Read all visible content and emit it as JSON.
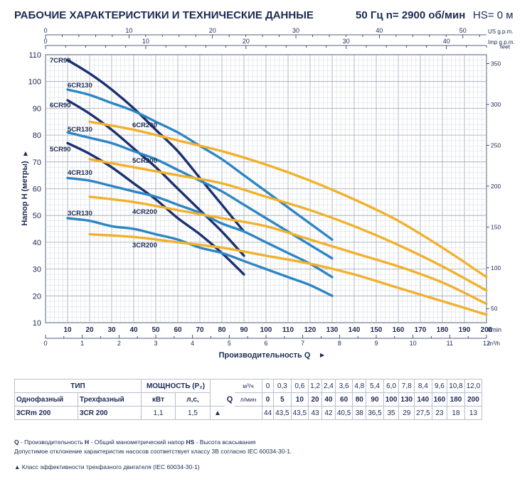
{
  "header": {
    "title": "РАБОЧИЕ ХАРАКТЕРИСТИКИ И ТЕХНИЧЕСКИЕ ДАННЫЕ",
    "frequency": "50 Гц   n= 2900 об/мин",
    "hs": "HS= 0 м"
  },
  "chart_data": {
    "type": "line",
    "ylabel": "Напор H (метры)",
    "xlabel": "Производительность Q",
    "y_ticks": [
      "10",
      "20",
      "30",
      "40",
      "50",
      "60",
      "70",
      "80",
      "90",
      "100",
      "110"
    ],
    "ylim": [
      10,
      110
    ],
    "x_lpm_ticks": [
      "10",
      "20",
      "30",
      "40",
      "50",
      "60",
      "70",
      "80",
      "90",
      "100",
      "110",
      "120",
      "130",
      "140",
      "150",
      "160",
      "170",
      "180",
      "190",
      "200"
    ],
    "x_lpm_unit": "l/min",
    "x_m3h_ticks": [
      "0",
      "1",
      "2",
      "3",
      "4",
      "5",
      "6",
      "7",
      "8",
      "9",
      "10",
      "11",
      "12"
    ],
    "x_m3h_unit": "m³/h",
    "x_usgpm_ticks": [
      "0",
      "10",
      "20",
      "30",
      "40",
      "50"
    ],
    "x_usgpm_unit": "US g.p.m.",
    "x_impgpm_ticks": [
      "0",
      "10",
      "20",
      "30",
      "40"
    ],
    "x_impgpm_unit": "Imp g.p.m.",
    "feet_ticks": [
      "50",
      "100",
      "150",
      "200",
      "250",
      "300",
      "350"
    ],
    "feet_unit": "feet",
    "xlim_lpm": [
      0,
      200
    ],
    "series": [
      {
        "name": "7CR90",
        "color": "#1a3070",
        "x": [
          10,
          20,
          30,
          40,
          50,
          60,
          70,
          80,
          90
        ],
        "y": [
          108,
          103,
          97,
          90,
          82,
          74,
          64,
          54,
          44
        ]
      },
      {
        "name": "6CR90",
        "color": "#1a3070",
        "x": [
          10,
          20,
          30,
          40,
          50,
          60,
          70,
          80,
          90
        ],
        "y": [
          93,
          88,
          82,
          75,
          68,
          60,
          52,
          44,
          35
        ]
      },
      {
        "name": "5CR90",
        "color": "#1a3070",
        "x": [
          10,
          20,
          30,
          40,
          50,
          60,
          70,
          80,
          90
        ],
        "y": [
          77,
          73,
          68,
          62,
          56,
          49,
          43,
          36,
          28
        ]
      },
      {
        "name": "6CR130",
        "color": "#2d86c4",
        "x": [
          10,
          20,
          30,
          40,
          50,
          60,
          70,
          80,
          90,
          100,
          110,
          120,
          130
        ],
        "y": [
          97,
          95,
          92,
          89,
          85,
          81,
          76,
          71,
          65,
          59,
          53,
          47,
          41
        ]
      },
      {
        "name": "5CR130",
        "color": "#2d86c4",
        "x": [
          10,
          20,
          30,
          40,
          50,
          60,
          70,
          80,
          90,
          100,
          110,
          120,
          130
        ],
        "y": [
          81,
          79,
          77,
          74,
          71,
          67,
          63,
          59,
          54,
          49,
          44,
          39,
          34
        ]
      },
      {
        "name": "4CR130",
        "color": "#2d86c4",
        "x": [
          10,
          20,
          30,
          40,
          50,
          60,
          70,
          80,
          90,
          100,
          110,
          120,
          130
        ],
        "y": [
          64,
          63,
          61,
          59,
          57,
          54,
          51,
          47,
          44,
          40,
          36,
          32,
          27
        ]
      },
      {
        "name": "3CR130",
        "color": "#2d86c4",
        "x": [
          10,
          20,
          30,
          40,
          50,
          60,
          70,
          80,
          90,
          100,
          110,
          120,
          130
        ],
        "y": [
          49,
          48,
          46,
          45,
          43,
          41,
          38,
          36,
          33,
          30,
          27,
          24,
          20
        ]
      },
      {
        "name": "6CR200",
        "color": "#f1b12d",
        "x": [
          20,
          40,
          60,
          80,
          100,
          120,
          140,
          160,
          180,
          200
        ],
        "y": [
          85,
          82,
          78,
          74,
          69,
          63,
          56,
          48,
          38,
          27
        ]
      },
      {
        "name": "5CR200",
        "color": "#f1b12d",
        "x": [
          20,
          40,
          60,
          80,
          100,
          120,
          140,
          160,
          180,
          200
        ],
        "y": [
          71,
          68,
          65,
          62,
          57,
          52,
          46,
          39,
          31,
          22
        ]
      },
      {
        "name": "4CR200",
        "color": "#f1b12d",
        "x": [
          20,
          40,
          60,
          80,
          100,
          120,
          140,
          160,
          180,
          200
        ],
        "y": [
          57,
          55,
          52,
          49,
          46,
          41,
          36,
          31,
          25,
          17
        ]
      },
      {
        "name": "3CR200",
        "color": "#f1b12d",
        "x": [
          20,
          40,
          60,
          80,
          100,
          120,
          140,
          160,
          180,
          200
        ],
        "y": [
          43,
          42,
          40,
          38,
          35,
          32,
          28,
          23,
          18,
          13
        ]
      }
    ]
  },
  "table": {
    "type_label": "ТИП",
    "power_label": "МОЩНОСТЬ (P₂)",
    "q_label": "Q",
    "m3h_label": "м³/ч",
    "lmin_label": "л/мин",
    "single_phase_label": "Однофазный",
    "three_phase_label": "Трехфазный",
    "kw_label": "кВт",
    "hp_label": "л,с,",
    "triangle": "▲",
    "m3h_values": [
      "0",
      "0,3",
      "0,6",
      "1,2",
      "2,4",
      "3,6",
      "4,8",
      "5,4",
      "6,0",
      "7,8",
      "8,4",
      "9,6",
      "10,8",
      "12,0"
    ],
    "lmin_values": [
      "0",
      "5",
      "10",
      "20",
      "40",
      "60",
      "80",
      "90",
      "100",
      "130",
      "140",
      "160",
      "180",
      "200"
    ],
    "row": {
      "single": "3CRm 200",
      "three": "3CR 200",
      "kw": "1,1",
      "hp": "1,5",
      "head": [
        "44",
        "43,5",
        "43,5",
        "43",
        "42",
        "40,5",
        "38",
        "36,5",
        "35",
        "29",
        "27,5",
        "23",
        "18",
        "13"
      ]
    }
  },
  "notes": {
    "line1_q": "Q",
    "line1_q_text": " - Производительность  ",
    "line1_h": "H",
    "line1_h_text": " - Общий манометрический напор  ",
    "line1_hs": "HS",
    "line1_hs_text": " - Высота всасывания",
    "line2": "Допустимое отклонение характеристик насосов соответствует классу 3B согласно IEC 60034-30-1.",
    "line3": "▲  Класс эффективности трехфазного двигателя (IEC 60034-30-1)"
  }
}
